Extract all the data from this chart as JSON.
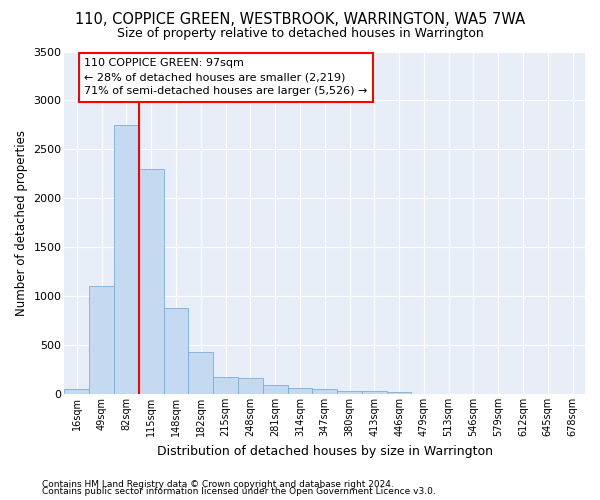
{
  "title": "110, COPPICE GREEN, WESTBROOK, WARRINGTON, WA5 7WA",
  "subtitle": "Size of property relative to detached houses in Warrington",
  "xlabel": "Distribution of detached houses by size in Warrington",
  "ylabel": "Number of detached properties",
  "bar_color": "#c5d9f0",
  "bar_edge_color": "#7aaed6",
  "background_color": "#e8eef8",
  "grid_color": "#ffffff",
  "bin_labels": [
    "16sqm",
    "49sqm",
    "82sqm",
    "115sqm",
    "148sqm",
    "182sqm",
    "215sqm",
    "248sqm",
    "281sqm",
    "314sqm",
    "347sqm",
    "380sqm",
    "413sqm",
    "446sqm",
    "479sqm",
    "513sqm",
    "546sqm",
    "579sqm",
    "612sqm",
    "645sqm",
    "678sqm"
  ],
  "bar_values": [
    50,
    1100,
    2750,
    2300,
    880,
    430,
    170,
    165,
    90,
    60,
    50,
    35,
    30,
    20,
    0,
    0,
    0,
    0,
    0,
    0,
    0
  ],
  "ylim": [
    0,
    3500
  ],
  "yticks": [
    0,
    500,
    1000,
    1500,
    2000,
    2500,
    3000,
    3500
  ],
  "red_line_bin": 3,
  "annotation_line1": "110 COPPICE GREEN: 97sqm",
  "annotation_line2": "← 28% of detached houses are smaller (2,219)",
  "annotation_line3": "71% of semi-detached houses are larger (5,526) →",
  "footnote1": "Contains HM Land Registry data © Crown copyright and database right 2024.",
  "footnote2": "Contains public sector information licensed under the Open Government Licence v3.0."
}
